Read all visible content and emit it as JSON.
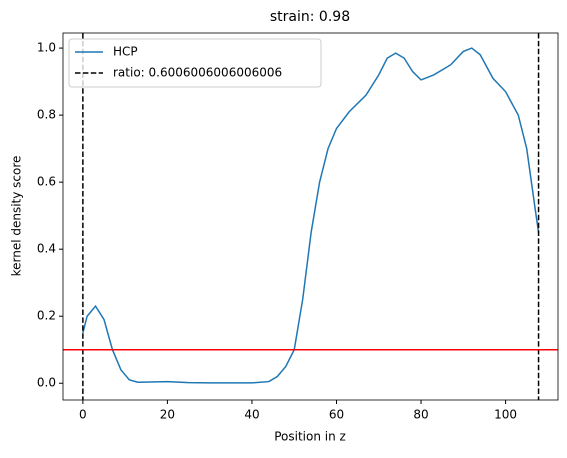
{
  "chart_data": {
    "type": "line",
    "title": "strain: 0.98",
    "xlabel": "Position in z",
    "ylabel": "kernel density score",
    "x": [
      0,
      1,
      3,
      5,
      7,
      9,
      11,
      13,
      20,
      25,
      30,
      40,
      44,
      46,
      48,
      50,
      52,
      54,
      56,
      58,
      60,
      63,
      67,
      70,
      72,
      74,
      76,
      78,
      80,
      83,
      87,
      90,
      92,
      94,
      97,
      100,
      103,
      105,
      107,
      107.8
    ],
    "series": [
      {
        "name": "HCP",
        "color": "#1f77b4",
        "values": [
          0.15,
          0.2,
          0.23,
          0.19,
          0.1,
          0.04,
          0.01,
          0.003,
          0.005,
          0.002,
          0.001,
          0.001,
          0.005,
          0.02,
          0.05,
          0.1,
          0.25,
          0.45,
          0.6,
          0.7,
          0.76,
          0.81,
          0.86,
          0.92,
          0.97,
          0.985,
          0.97,
          0.93,
          0.905,
          0.92,
          0.95,
          0.99,
          1.0,
          0.98,
          0.91,
          0.87,
          0.8,
          0.7,
          0.52,
          0.45
        ]
      }
    ],
    "vlines": {
      "name": "ratio: 0.6006006006006006",
      "color": "#000000",
      "values": [
        0,
        107.8
      ]
    },
    "hline": {
      "value": 0.1,
      "color": "#ff0000"
    },
    "xlim": [
      -4.7,
      112.4
    ],
    "ylim": [
      -0.05,
      1.045
    ],
    "xticks": [
      0,
      20,
      40,
      60,
      80,
      100
    ],
    "yticks": [
      {
        "value": 0,
        "label": "0.0"
      },
      {
        "value": 0.2,
        "label": "0.2"
      },
      {
        "value": 0.4,
        "label": "0.4"
      },
      {
        "value": 0.6,
        "label": "0.6"
      },
      {
        "value": 0.8,
        "label": "0.8"
      },
      {
        "value": 1,
        "label": "1.0"
      }
    ],
    "legend": "upper left"
  }
}
